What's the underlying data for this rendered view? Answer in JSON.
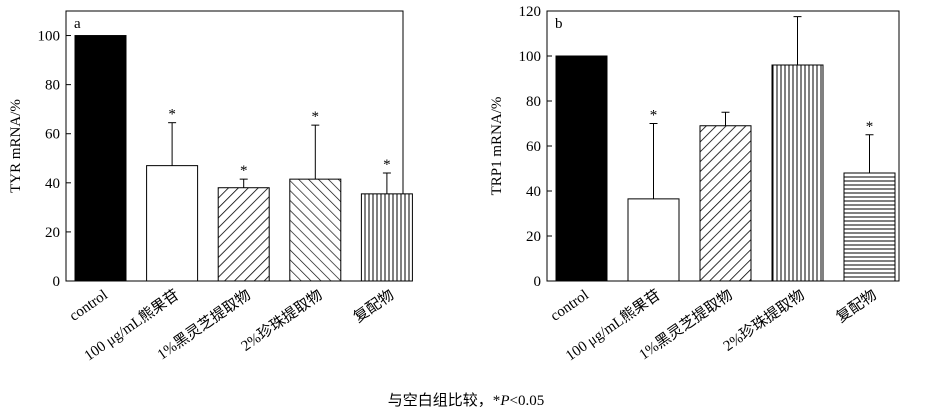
{
  "chart_data": [
    {
      "panel_label": "a",
      "type": "bar",
      "title": "",
      "xlabel": "",
      "ylabel": "TYR mRNA/%",
      "ylim": [
        0,
        110
      ],
      "yticks": [
        0,
        20,
        40,
        60,
        80,
        100
      ],
      "categories": [
        "control",
        "100 μg/mL熊果苷",
        "1%黑灵芝提取物",
        "2%珍珠提取物",
        "复配物"
      ],
      "values": [
        100,
        47,
        38,
        41.5,
        35.5
      ],
      "errors": [
        0,
        17.5,
        3.5,
        22,
        8.5
      ],
      "significance": [
        "",
        "*",
        "*",
        "*",
        "*"
      ],
      "patterns": [
        "solid",
        "empty",
        "diag-right",
        "diag-left",
        "vertical"
      ],
      "grid": false,
      "legend": "none"
    },
    {
      "panel_label": "b",
      "type": "bar",
      "title": "",
      "xlabel": "",
      "ylabel": "TRP1 mRNA/%",
      "ylim": [
        0,
        120
      ],
      "yticks": [
        0,
        20,
        40,
        60,
        80,
        100,
        120
      ],
      "categories": [
        "control",
        "100 μg/mL熊果苷",
        "1%黑灵芝提取物",
        "2%珍珠提取物",
        "复配物"
      ],
      "values": [
        100,
        36.5,
        69,
        96,
        48
      ],
      "errors": [
        0,
        33.5,
        6,
        21.5,
        17
      ],
      "significance": [
        "",
        "*",
        "",
        "",
        "*"
      ],
      "patterns": [
        "solid",
        "empty",
        "diag-right",
        "vertical",
        "horizontal"
      ],
      "grid": false,
      "legend": "none"
    }
  ],
  "footnote": {
    "prefix": "与空白组比较，*",
    "p_symbol": "P",
    "suffix": "<0.05"
  },
  "colors": {
    "ink": "#000000",
    "background": "#ffffff"
  }
}
